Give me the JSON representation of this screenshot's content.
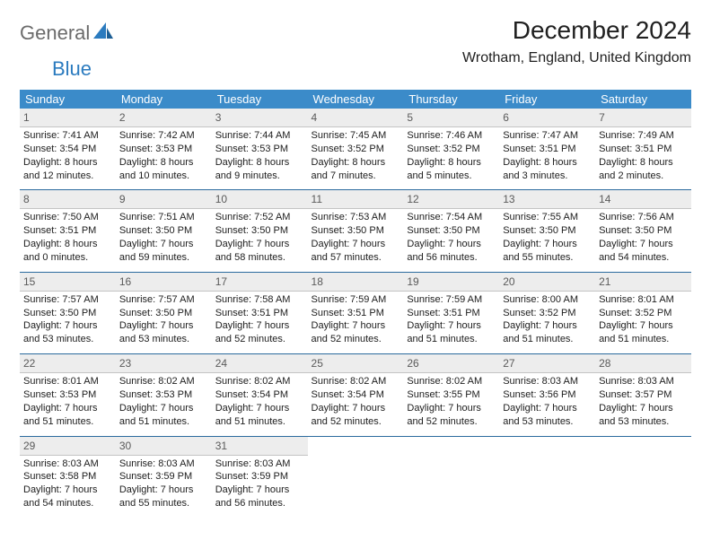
{
  "brand": {
    "part1": "General",
    "part2": "Blue"
  },
  "title": "December 2024",
  "location": "Wrotham, England, United Kingdom",
  "colors": {
    "header_bg": "#3b8bc9",
    "daynum_bg": "#ededed",
    "rule": "#2b6b9e",
    "brand_gray": "#6b6b6b",
    "brand_blue": "#2b7bbf"
  },
  "dayNames": [
    "Sunday",
    "Monday",
    "Tuesday",
    "Wednesday",
    "Thursday",
    "Friday",
    "Saturday"
  ],
  "days": [
    {
      "n": 1,
      "sr": "7:41 AM",
      "ss": "3:54 PM",
      "dl": "8 hours and 12 minutes."
    },
    {
      "n": 2,
      "sr": "7:42 AM",
      "ss": "3:53 PM",
      "dl": "8 hours and 10 minutes."
    },
    {
      "n": 3,
      "sr": "7:44 AM",
      "ss": "3:53 PM",
      "dl": "8 hours and 9 minutes."
    },
    {
      "n": 4,
      "sr": "7:45 AM",
      "ss": "3:52 PM",
      "dl": "8 hours and 7 minutes."
    },
    {
      "n": 5,
      "sr": "7:46 AM",
      "ss": "3:52 PM",
      "dl": "8 hours and 5 minutes."
    },
    {
      "n": 6,
      "sr": "7:47 AM",
      "ss": "3:51 PM",
      "dl": "8 hours and 3 minutes."
    },
    {
      "n": 7,
      "sr": "7:49 AM",
      "ss": "3:51 PM",
      "dl": "8 hours and 2 minutes."
    },
    {
      "n": 8,
      "sr": "7:50 AM",
      "ss": "3:51 PM",
      "dl": "8 hours and 0 minutes."
    },
    {
      "n": 9,
      "sr": "7:51 AM",
      "ss": "3:50 PM",
      "dl": "7 hours and 59 minutes."
    },
    {
      "n": 10,
      "sr": "7:52 AM",
      "ss": "3:50 PM",
      "dl": "7 hours and 58 minutes."
    },
    {
      "n": 11,
      "sr": "7:53 AM",
      "ss": "3:50 PM",
      "dl": "7 hours and 57 minutes."
    },
    {
      "n": 12,
      "sr": "7:54 AM",
      "ss": "3:50 PM",
      "dl": "7 hours and 56 minutes."
    },
    {
      "n": 13,
      "sr": "7:55 AM",
      "ss": "3:50 PM",
      "dl": "7 hours and 55 minutes."
    },
    {
      "n": 14,
      "sr": "7:56 AM",
      "ss": "3:50 PM",
      "dl": "7 hours and 54 minutes."
    },
    {
      "n": 15,
      "sr": "7:57 AM",
      "ss": "3:50 PM",
      "dl": "7 hours and 53 minutes."
    },
    {
      "n": 16,
      "sr": "7:57 AM",
      "ss": "3:50 PM",
      "dl": "7 hours and 53 minutes."
    },
    {
      "n": 17,
      "sr": "7:58 AM",
      "ss": "3:51 PM",
      "dl": "7 hours and 52 minutes."
    },
    {
      "n": 18,
      "sr": "7:59 AM",
      "ss": "3:51 PM",
      "dl": "7 hours and 52 minutes."
    },
    {
      "n": 19,
      "sr": "7:59 AM",
      "ss": "3:51 PM",
      "dl": "7 hours and 51 minutes."
    },
    {
      "n": 20,
      "sr": "8:00 AM",
      "ss": "3:52 PM",
      "dl": "7 hours and 51 minutes."
    },
    {
      "n": 21,
      "sr": "8:01 AM",
      "ss": "3:52 PM",
      "dl": "7 hours and 51 minutes."
    },
    {
      "n": 22,
      "sr": "8:01 AM",
      "ss": "3:53 PM",
      "dl": "7 hours and 51 minutes."
    },
    {
      "n": 23,
      "sr": "8:02 AM",
      "ss": "3:53 PM",
      "dl": "7 hours and 51 minutes."
    },
    {
      "n": 24,
      "sr": "8:02 AM",
      "ss": "3:54 PM",
      "dl": "7 hours and 51 minutes."
    },
    {
      "n": 25,
      "sr": "8:02 AM",
      "ss": "3:54 PM",
      "dl": "7 hours and 52 minutes."
    },
    {
      "n": 26,
      "sr": "8:02 AM",
      "ss": "3:55 PM",
      "dl": "7 hours and 52 minutes."
    },
    {
      "n": 27,
      "sr": "8:03 AM",
      "ss": "3:56 PM",
      "dl": "7 hours and 53 minutes."
    },
    {
      "n": 28,
      "sr": "8:03 AM",
      "ss": "3:57 PM",
      "dl": "7 hours and 53 minutes."
    },
    {
      "n": 29,
      "sr": "8:03 AM",
      "ss": "3:58 PM",
      "dl": "7 hours and 54 minutes."
    },
    {
      "n": 30,
      "sr": "8:03 AM",
      "ss": "3:59 PM",
      "dl": "7 hours and 55 minutes."
    },
    {
      "n": 31,
      "sr": "8:03 AM",
      "ss": "3:59 PM",
      "dl": "7 hours and 56 minutes."
    }
  ],
  "labels": {
    "sunrise": "Sunrise:",
    "sunset": "Sunset:",
    "daylight": "Daylight:"
  }
}
